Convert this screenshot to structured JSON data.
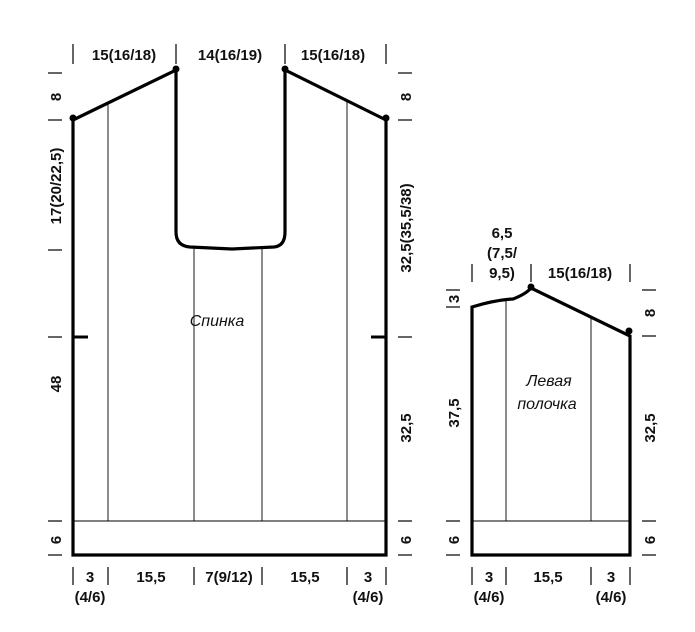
{
  "back": {
    "top_labels": [
      "15(16/18)",
      "14(16/19)",
      "15(16/18)"
    ],
    "left_labels": [
      "8",
      "17(20/22,5)",
      "48",
      "6"
    ],
    "right_labels": [
      "8",
      "32,5(35,5/38)",
      "32,5",
      "6"
    ],
    "bottom_labels": [
      "3",
      "(4/6)",
      "15,5",
      "7(9/12)",
      "15,5",
      "3",
      "(4/6)"
    ],
    "name": "Спинка"
  },
  "front": {
    "top_labels": [
      "6,5",
      "(7,5/",
      "9,5)",
      "15(16/18)"
    ],
    "left_labels": [
      "3",
      "37,5",
      "6"
    ],
    "right_labels": [
      "8",
      "32,5",
      "6"
    ],
    "bottom_labels": [
      "3",
      "(4/6)",
      "15,5",
      "3",
      "(4/6)"
    ],
    "name_line1": "Левая",
    "name_line2": "полочка"
  }
}
